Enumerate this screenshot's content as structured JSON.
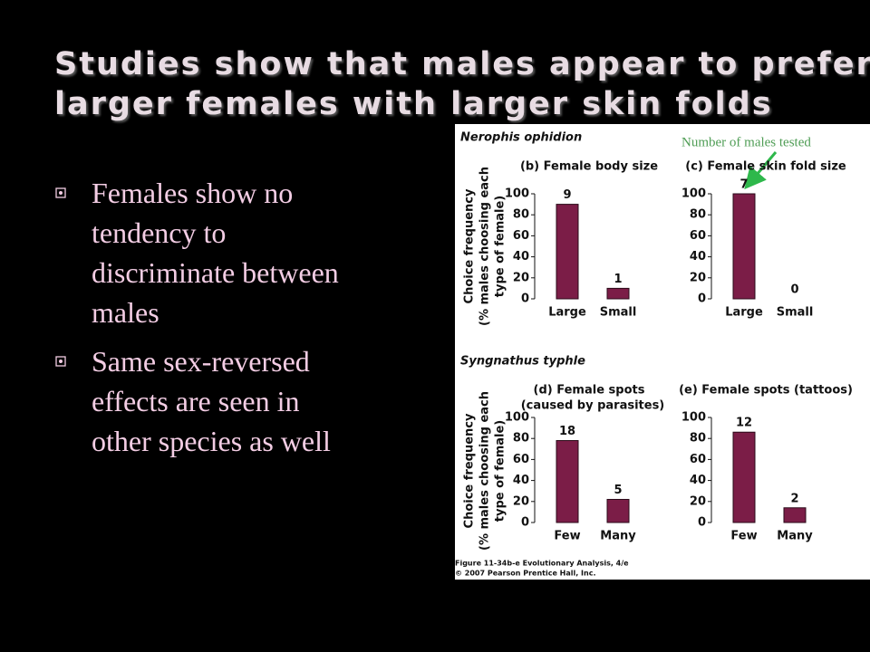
{
  "slide": {
    "title": [
      "Studies show that males appear to prefer",
      "larger females with larger skin folds"
    ],
    "bullets": [
      [
        "Females show no",
        "tendency to",
        "discriminate between",
        "males"
      ],
      [
        "Same sex-reversed",
        "effects are seen in",
        "other species as well"
      ]
    ]
  },
  "figure": {
    "species": [
      "Nerophis ophidion",
      "Syngnathus typhle"
    ],
    "ylabel_lines": [
      "Choice frequency",
      "(% males choosing each",
      "type of female)"
    ],
    "annotation": "Number of males tested",
    "caption": [
      "Figure 11-34b-e Evolutionary Analysis, 4/e",
      "© 2007 Pearson Prentice Hall, Inc."
    ]
  },
  "chart_data": [
    {
      "type": "bar",
      "title": "(b) Female body size",
      "categories": [
        "Large",
        "Small"
      ],
      "values": [
        90,
        10
      ],
      "counts": [
        9,
        1
      ],
      "color": "#7b1d47",
      "ylim": [
        0,
        100
      ],
      "yticks": [
        0,
        20,
        40,
        60,
        80,
        100
      ]
    },
    {
      "type": "bar",
      "title": "(c) Female skin fold size",
      "categories": [
        "Large",
        "Small"
      ],
      "values": [
        100,
        0
      ],
      "counts": [
        7,
        0
      ],
      "color": "#7b1d47",
      "ylim": [
        0,
        100
      ],
      "yticks": [
        0,
        20,
        40,
        60,
        80,
        100
      ]
    },
    {
      "type": "bar",
      "title": "(d) Female spots",
      "subtitle": "(caused by parasites)",
      "categories": [
        "Few",
        "Many"
      ],
      "values": [
        78,
        22
      ],
      "counts": [
        18,
        5
      ],
      "color": "#7b1d47",
      "ylim": [
        0,
        100
      ],
      "yticks": [
        0,
        20,
        40,
        60,
        80,
        100
      ]
    },
    {
      "type": "bar",
      "title": "(e) Female spots (tattoos)",
      "categories": [
        "Few",
        "Many"
      ],
      "values": [
        86,
        14
      ],
      "counts": [
        12,
        2
      ],
      "color": "#7b1d47",
      "ylim": [
        0,
        100
      ],
      "yticks": [
        0,
        20,
        40,
        60,
        80,
        100
      ]
    }
  ]
}
